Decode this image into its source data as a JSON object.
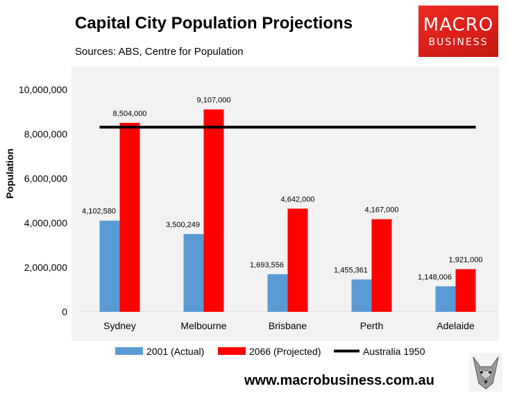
{
  "title": "Capital City Population Projections",
  "subtitle": "Sources: ABS, Centre for Population",
  "logo": {
    "line1": "MACRO",
    "line2": "BUSINESS"
  },
  "footer_url": "www.macrobusiness.com.au",
  "colors": {
    "actual": "#5b9bd5",
    "projected": "#ff0000",
    "reference": "#000000",
    "plot_bg": "#f2f2f2",
    "logo_bg": "#e3231b"
  },
  "chart_data": {
    "type": "bar",
    "categories": [
      "Sydney",
      "Melbourne",
      "Brisbane",
      "Perth",
      "Adelaide"
    ],
    "series": [
      {
        "name": "2001 (Actual)",
        "values": [
          4102580,
          3500249,
          1693556,
          1455361,
          1148006
        ],
        "labels": [
          "4,102,580",
          "3,500,249",
          "1,693,556",
          "1,455,361",
          "1,148,006"
        ]
      },
      {
        "name": "2066 (Projected)",
        "values": [
          8504000,
          9107000,
          4642000,
          4167000,
          1921000
        ],
        "labels": [
          "8,504,000",
          "9,107,000",
          "4,642,000",
          "4,167,000",
          "1,921,000"
        ]
      }
    ],
    "reference_line": {
      "name": "Australia 1950",
      "value": 8307000
    },
    "ylabel": "Population",
    "ylim": [
      0,
      10000000
    ],
    "yticks": [
      0,
      2000000,
      4000000,
      6000000,
      8000000,
      10000000
    ],
    "ytick_labels": [
      "0",
      "2,000,000",
      "4,000,000",
      "6,000,000",
      "8,000,000",
      "10,000,000"
    ],
    "grid": false,
    "legend_position": "bottom"
  }
}
